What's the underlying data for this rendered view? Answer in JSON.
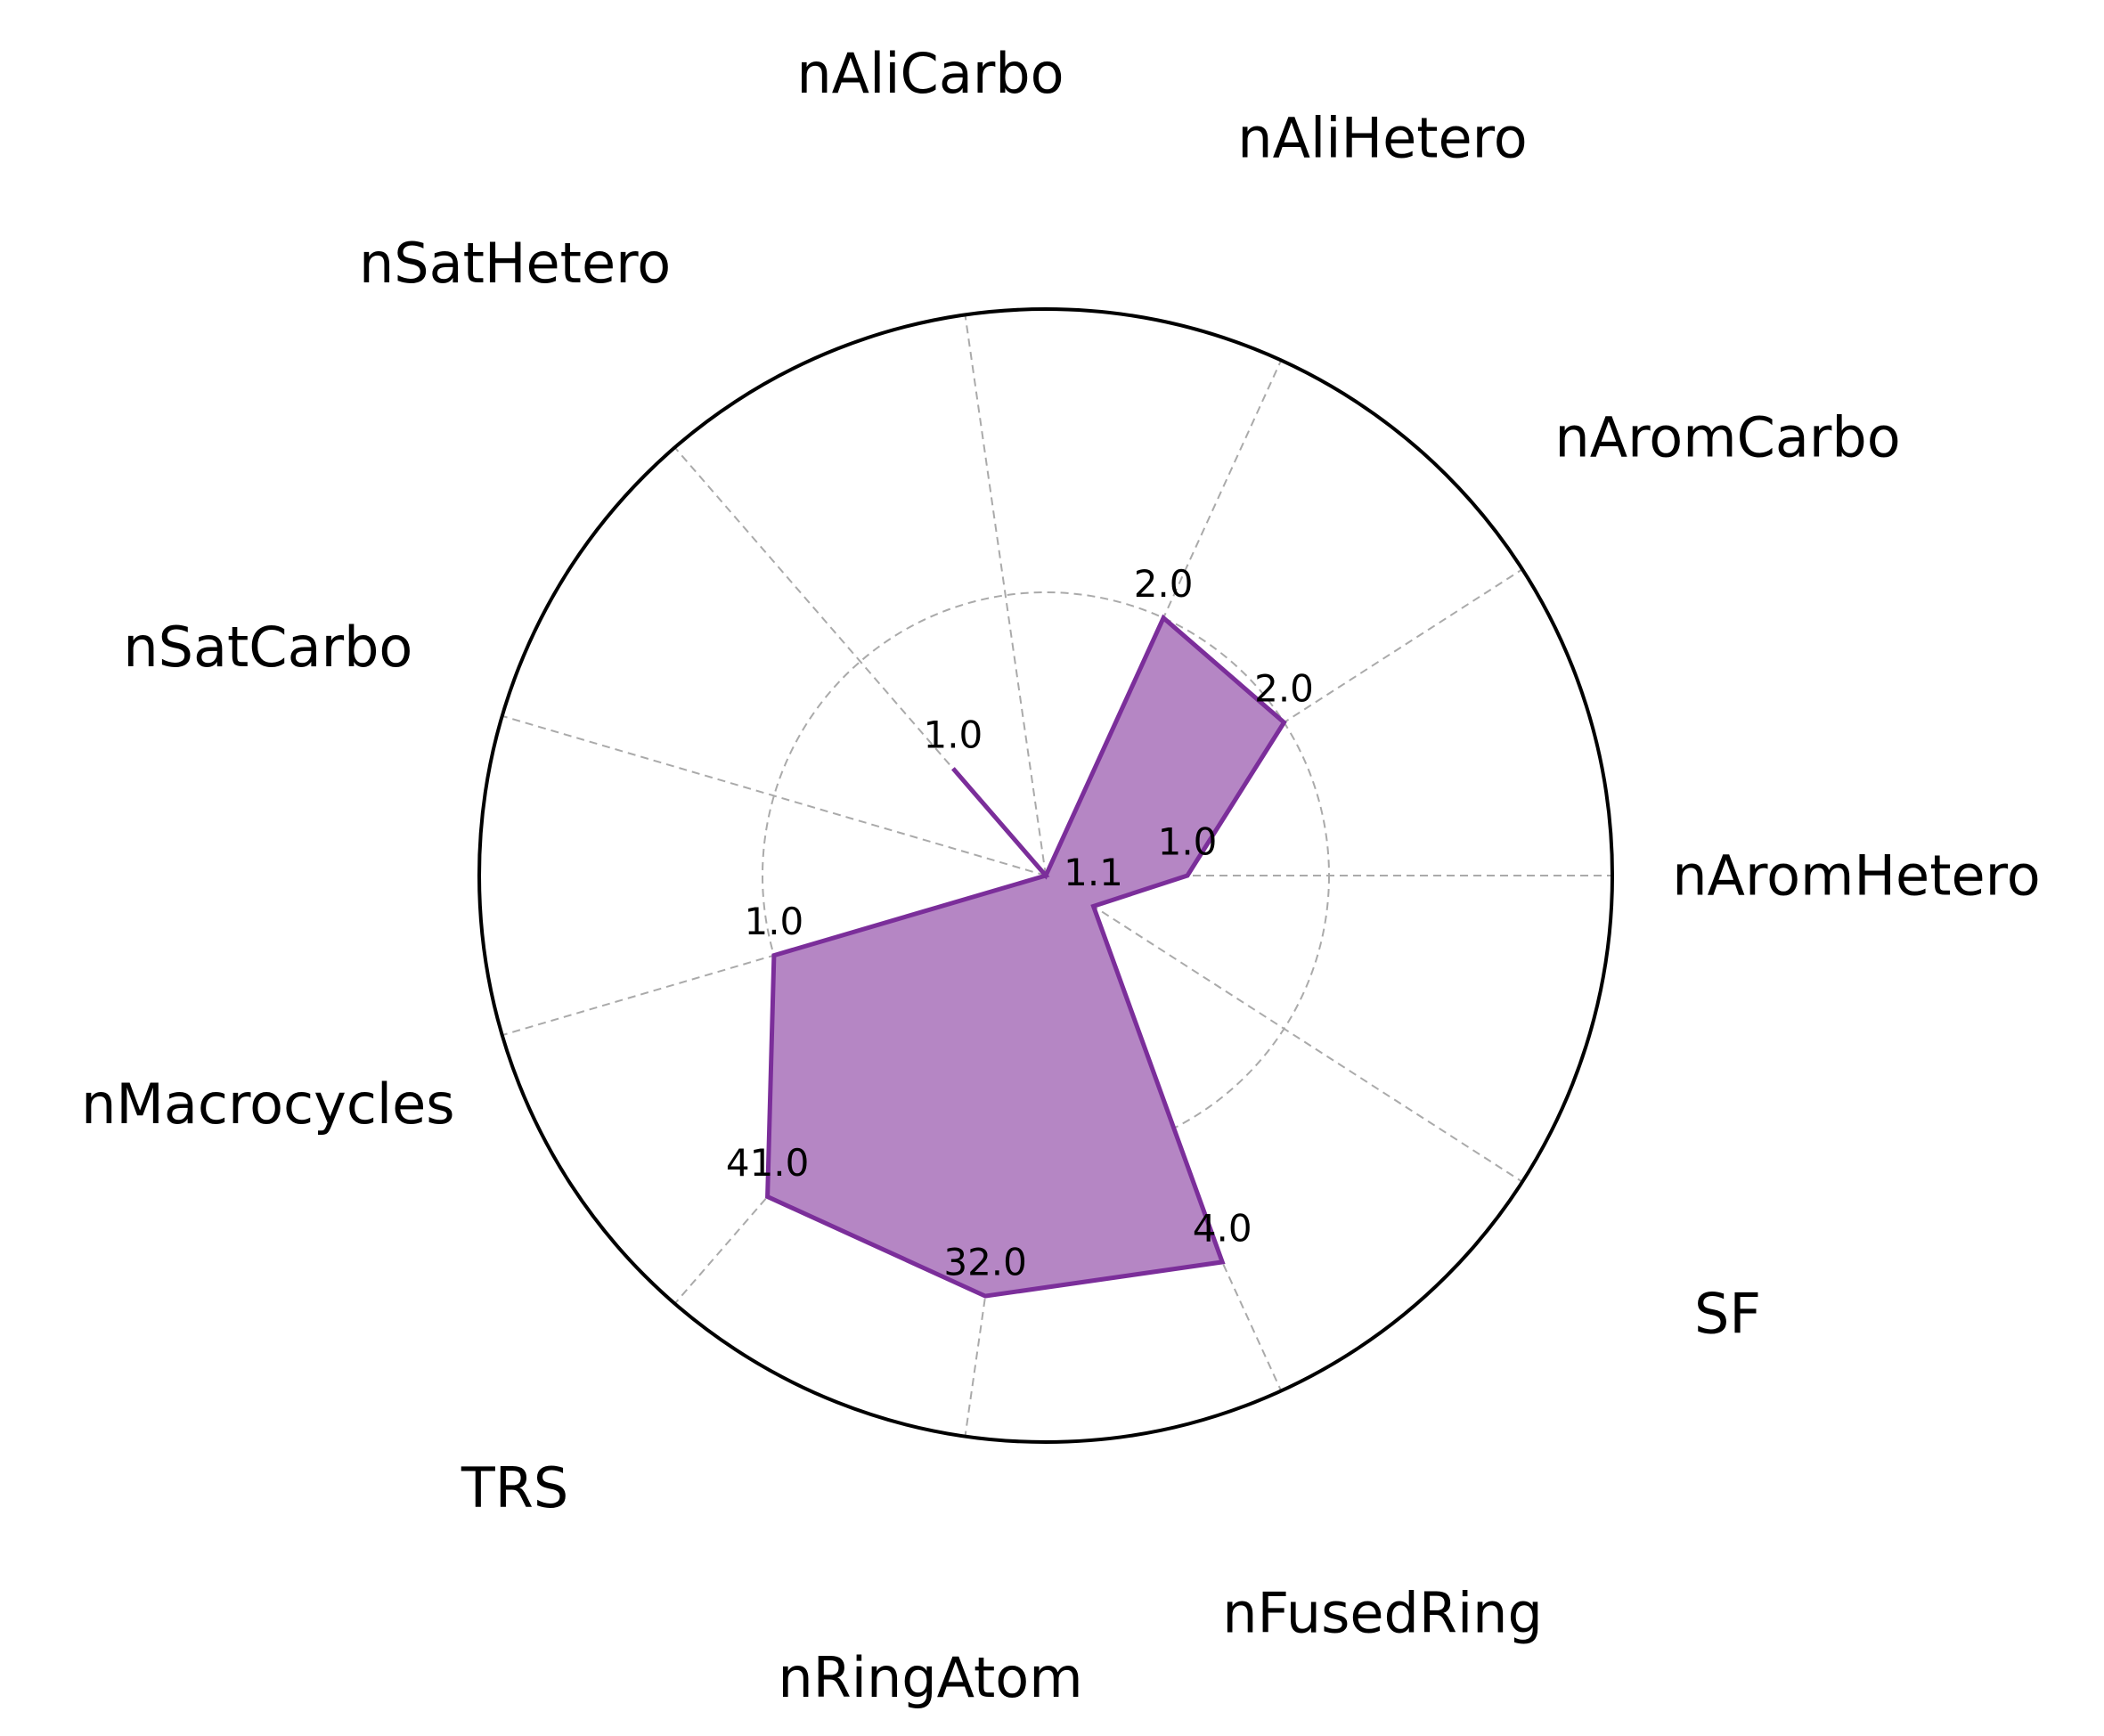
{
  "chart_data": {
    "type": "radar",
    "title": "",
    "categories": [
      "nAromHetero",
      "nAromCarbo",
      "nAliHetero",
      "nAliCarbo",
      "nSatHetero",
      "nSatCarbo",
      "nMacrocycles",
      "TRS",
      "nRingAtom",
      "nFusedRing",
      "SF"
    ],
    "series": [
      {
        "values": [
          1.0,
          2.0,
          2.0,
          0.0,
          1.0,
          0.0,
          1.0,
          41.0,
          32.0,
          4.0,
          1.1
        ],
        "labels": [
          "1.0",
          "2.0",
          "2.0",
          "",
          "1.0",
          "",
          "1.0",
          "41.0",
          "32.0",
          "4.0",
          "1.1"
        ],
        "normalized": [
          0.25,
          0.5,
          0.5,
          0.0,
          0.25,
          0.0,
          0.5,
          0.75,
          0.75,
          0.75,
          0.1
        ]
      }
    ],
    "rgrid": [
      0.5
    ],
    "rlim": [
      0,
      1
    ],
    "grid": true,
    "legend": "none"
  },
  "colors": {
    "line": "#7b2e9a",
    "fill": "#b586c4",
    "grid": "#aaaaaa",
    "frame": "#000000"
  }
}
